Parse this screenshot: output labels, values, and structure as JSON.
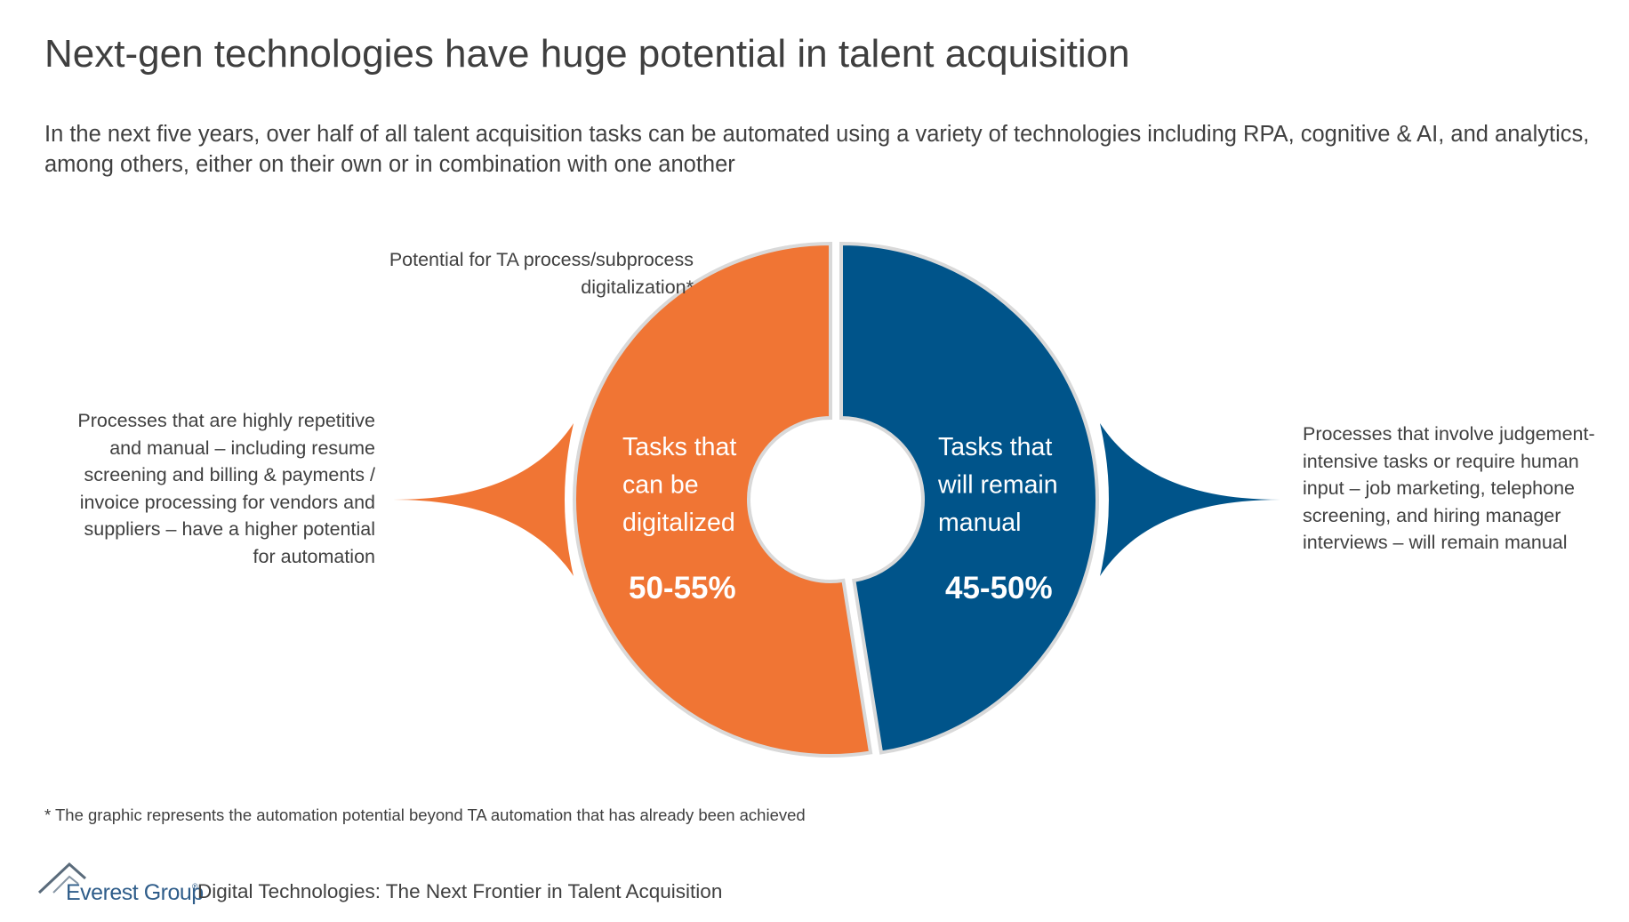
{
  "title": "Next-gen technologies have huge potential in talent acquisition",
  "subtitle": "In the next five years, over half of all talent acquisition tasks can be automated using a variety of technologies including RPA, cognitive & AI, and analytics, among others, either on their own or in combination with one another",
  "annotations": {
    "top": "Potential for TA process/subprocess digitalization*",
    "left": "Processes that are highly repetitive and manual – including resume screening and billing & payments / invoice processing for vendors and suppliers – have a higher potential for automation",
    "right": "Processes that involve judgement-intensive tasks or require human input – job marketing, telephone screening, and hiring manager interviews – will remain manual"
  },
  "footnote": "*  The graphic represents the automation potential beyond TA automation that has already been achieved",
  "footer": {
    "logo_text": "Everest Group",
    "logo_mark": "®",
    "text": "Digital Technologies: The Next Frontier in Talent Acquisition"
  },
  "colors": {
    "orange": "#F07534",
    "blue": "#00548A",
    "separator": "#d9d9d9",
    "logo": "#2f5d8a"
  },
  "chart_data": {
    "type": "pie",
    "variant": "donut",
    "segments": [
      {
        "name": "Tasks that can be digitalized",
        "label_lines": [
          "Tasks that",
          "can be",
          "digitalized"
        ],
        "value_label": "50-55%",
        "share": 0.525,
        "color": "#F07534"
      },
      {
        "name": "Tasks that will remain manual",
        "label_lines": [
          "Tasks that",
          "will remain",
          "manual"
        ],
        "value_label": "45-50%",
        "share": 0.475,
        "color": "#00548A"
      }
    ]
  }
}
